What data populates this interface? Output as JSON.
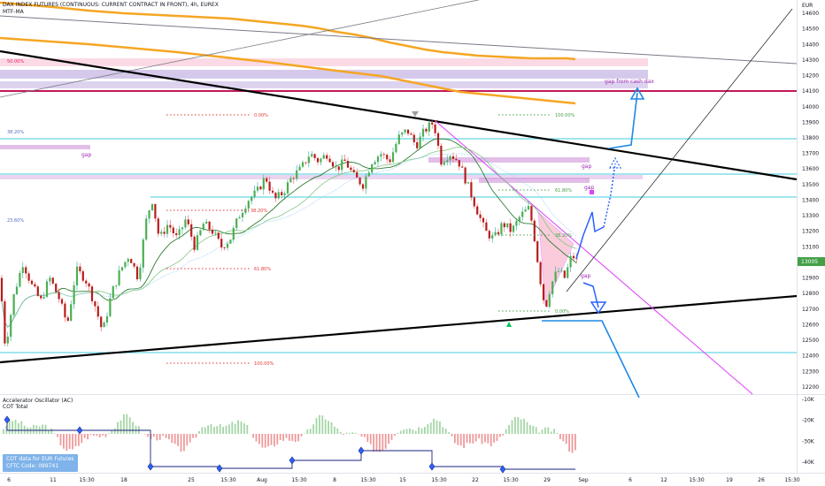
{
  "header": {
    "title": "DAX INDEX FUTURES (CONTINUOUS: CURRENT CONTRACT IN FRONT), 4h, EUREX",
    "indicator": "MTF-MA"
  },
  "oscillator": {
    "title": "Accelerator Oscillator (AC)",
    "subtitle": "COT Total",
    "cot_line1": "COT data for EUR Futures",
    "cot_line2": "CFTC Code: 099741",
    "ticks": [
      {
        "v": -10,
        "label": "-10K"
      },
      {
        "v": -20,
        "label": "-20K"
      },
      {
        "v": -30,
        "label": "-30K"
      },
      {
        "v": -40,
        "label": "-40K"
      }
    ]
  },
  "annotations": {
    "gap_cash": "gap from cash dax",
    "gap": "gap"
  },
  "chart_data": {
    "type": "candlestick",
    "currency": "EUR",
    "y_axis": {
      "min": 12150,
      "max": 14700,
      "ticks": [
        14600,
        14500,
        14400,
        14300,
        14200,
        14100,
        14000,
        13900,
        13800,
        13700,
        13600,
        13500,
        13400,
        13300,
        13200,
        13100,
        13000,
        12900,
        12800,
        12700,
        12600,
        12500,
        12400,
        12300,
        12200
      ],
      "last_price": 13005
    },
    "x_axis": {
      "labels": [
        "6",
        "11",
        "15:30",
        "18",
        "25",
        "15:30",
        "Aug",
        "15:30",
        "8",
        "15:30",
        "15",
        "15:30",
        "22",
        "15:30",
        "29",
        "Sep",
        "6",
        "12",
        "15:30",
        "19",
        "26",
        "15:30"
      ]
    },
    "price_path": [
      [
        0,
        12900
      ],
      [
        6,
        12450
      ],
      [
        16,
        12800
      ],
      [
        26,
        13000
      ],
      [
        36,
        12850
      ],
      [
        46,
        12750
      ],
      [
        56,
        12900
      ],
      [
        66,
        12780
      ],
      [
        76,
        12600
      ],
      [
        86,
        12950
      ],
      [
        96,
        12900
      ],
      [
        106,
        12750
      ],
      [
        116,
        12550
      ],
      [
        126,
        12800
      ],
      [
        136,
        12950
      ],
      [
        146,
        13050
      ],
      [
        156,
        12900
      ],
      [
        166,
        13300
      ],
      [
        172,
        13400
      ],
      [
        180,
        13150
      ],
      [
        190,
        13250
      ],
      [
        200,
        13150
      ],
      [
        210,
        13280
      ],
      [
        220,
        13100
      ],
      [
        230,
        13250
      ],
      [
        240,
        13200
      ],
      [
        250,
        13100
      ],
      [
        260,
        13150
      ],
      [
        270,
        13300
      ],
      [
        280,
        13400
      ],
      [
        290,
        13450
      ],
      [
        300,
        13550
      ],
      [
        310,
        13400
      ],
      [
        320,
        13450
      ],
      [
        330,
        13550
      ],
      [
        340,
        13600
      ],
      [
        350,
        13700
      ],
      [
        360,
        13650
      ],
      [
        370,
        13700
      ],
      [
        380,
        13600
      ],
      [
        390,
        13650
      ],
      [
        400,
        13550
      ],
      [
        410,
        13500
      ],
      [
        420,
        13650
      ],
      [
        430,
        13700
      ],
      [
        440,
        13650
      ],
      [
        450,
        13800
      ],
      [
        460,
        13850
      ],
      [
        470,
        13750
      ],
      [
        480,
        13850
      ],
      [
        490,
        13900
      ],
      [
        498,
        13650
      ],
      [
        508,
        13700
      ],
      [
        518,
        13650
      ],
      [
        528,
        13500
      ],
      [
        538,
        13350
      ],
      [
        548,
        13200
      ],
      [
        558,
        13150
      ],
      [
        568,
        13250
      ],
      [
        578,
        13200
      ],
      [
        588,
        13300
      ],
      [
        598,
        13350
      ],
      [
        604,
        13150
      ],
      [
        610,
        12900
      ],
      [
        616,
        12700
      ],
      [
        622,
        12850
      ],
      [
        630,
        12950
      ],
      [
        638,
        12900
      ],
      [
        646,
        13050
      ],
      [
        652,
        13005
      ]
    ],
    "levels": [
      {
        "price": 14320,
        "label": "50.00%"
      },
      {
        "price": 13880,
        "label": "38.20%"
      },
      {
        "price": 13260,
        "label": "23.60%"
      },
      {
        "price": 14150,
        "label": "gap from cash dax"
      }
    ],
    "fib_right": [
      {
        "price": 14000,
        "label": "100.00%"
      },
      {
        "price": 13480,
        "label": "61.80%"
      },
      {
        "price": 13200,
        "label": "38.20%"
      },
      {
        "price": 12680,
        "label": "0.00%"
      }
    ],
    "fib_mid": [
      {
        "price": 14000,
        "label": "0.00%"
      },
      {
        "price": 13350,
        "label": "38.20%"
      },
      {
        "price": 13050,
        "label": "61.80%"
      },
      {
        "price": 12370,
        "label": "100.00%"
      }
    ]
  }
}
